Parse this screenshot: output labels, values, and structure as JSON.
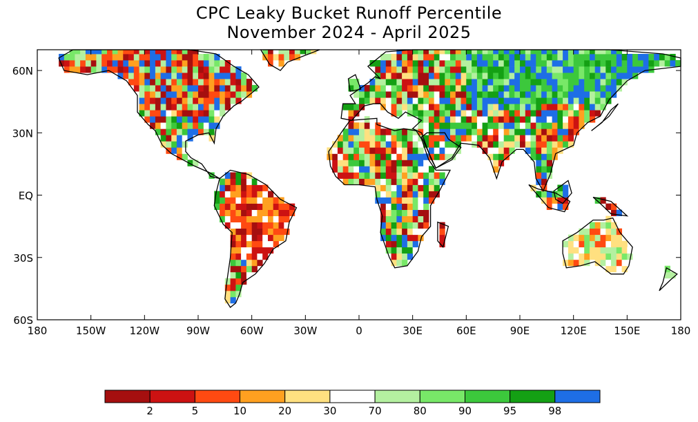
{
  "title": "CPC Leaky Bucket Runoff Percentile",
  "subtitle": "November 2024 - April 2025",
  "map": {
    "lon_ticks": [
      "180",
      "150W",
      "120W",
      "90W",
      "60W",
      "30W",
      "0",
      "30E",
      "60E",
      "90E",
      "120E",
      "150E",
      "180"
    ],
    "lat_ticks": [
      "60N",
      "30N",
      "EQ",
      "30S",
      "60S"
    ],
    "lon_range": [
      -180,
      180
    ],
    "lat_range": [
      -60,
      70
    ]
  },
  "legend": {
    "bins": [
      {
        "color": "#a50f0f"
      },
      {
        "color": "#cc1212"
      },
      {
        "color": "#ff4a12"
      },
      {
        "color": "#ffa020"
      },
      {
        "color": "#ffe080"
      },
      {
        "color": "#ffffff"
      },
      {
        "color": "#b4f0a0"
      },
      {
        "color": "#78e868"
      },
      {
        "color": "#3cc83c"
      },
      {
        "color": "#14a014"
      },
      {
        "color": "#1e6ee6"
      }
    ],
    "labels": [
      "2",
      "5",
      "10",
      "20",
      "30",
      "70",
      "80",
      "90",
      "95",
      "98"
    ]
  }
}
